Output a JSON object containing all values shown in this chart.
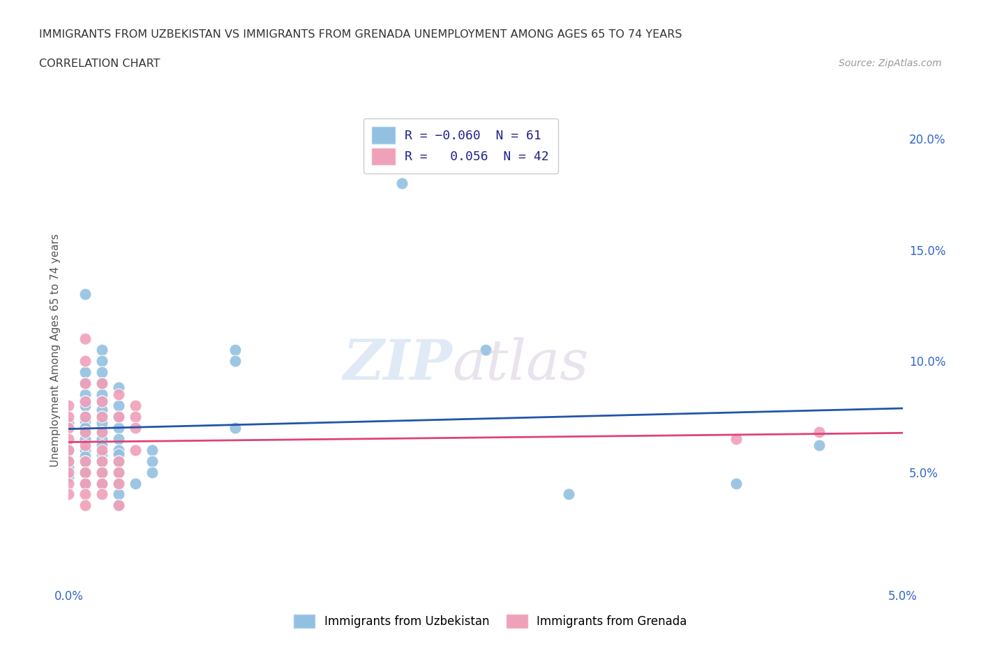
{
  "title_line1": "IMMIGRANTS FROM UZBEKISTAN VS IMMIGRANTS FROM GRENADA UNEMPLOYMENT AMONG AGES 65 TO 74 YEARS",
  "title_line2": "CORRELATION CHART",
  "source_text": "Source: ZipAtlas.com",
  "ylabel": "Unemployment Among Ages 65 to 74 years",
  "xlim": [
    0.0,
    0.05
  ],
  "ylim": [
    0.0,
    0.21
  ],
  "y_ticks_right": [
    0.05,
    0.1,
    0.15,
    0.2
  ],
  "y_tick_labels_right": [
    "5.0%",
    "10.0%",
    "15.0%",
    "20.0%"
  ],
  "uzbekistan_color": "#92c0e0",
  "grenada_color": "#f0a0b8",
  "uzbekistan_line_color": "#2255aa",
  "grenada_line_color": "#dd4477",
  "background_color": "#ffffff",
  "grid_color": "#cccccc",
  "uzbekistan_points": [
    [
      0.0,
      0.06
    ],
    [
      0.0,
      0.055
    ],
    [
      0.0,
      0.052
    ],
    [
      0.0,
      0.048
    ],
    [
      0.0,
      0.072
    ],
    [
      0.001,
      0.13
    ],
    [
      0.001,
      0.095
    ],
    [
      0.001,
      0.09
    ],
    [
      0.001,
      0.085
    ],
    [
      0.001,
      0.082
    ],
    [
      0.001,
      0.08
    ],
    [
      0.001,
      0.075
    ],
    [
      0.001,
      0.073
    ],
    [
      0.001,
      0.07
    ],
    [
      0.001,
      0.068
    ],
    [
      0.001,
      0.065
    ],
    [
      0.001,
      0.06
    ],
    [
      0.001,
      0.057
    ],
    [
      0.001,
      0.055
    ],
    [
      0.001,
      0.05
    ],
    [
      0.001,
      0.045
    ],
    [
      0.002,
      0.105
    ],
    [
      0.002,
      0.1
    ],
    [
      0.002,
      0.095
    ],
    [
      0.002,
      0.09
    ],
    [
      0.002,
      0.085
    ],
    [
      0.002,
      0.082
    ],
    [
      0.002,
      0.078
    ],
    [
      0.002,
      0.075
    ],
    [
      0.002,
      0.072
    ],
    [
      0.002,
      0.068
    ],
    [
      0.002,
      0.065
    ],
    [
      0.002,
      0.062
    ],
    [
      0.002,
      0.058
    ],
    [
      0.002,
      0.055
    ],
    [
      0.002,
      0.05
    ],
    [
      0.002,
      0.045
    ],
    [
      0.003,
      0.088
    ],
    [
      0.003,
      0.08
    ],
    [
      0.003,
      0.075
    ],
    [
      0.003,
      0.07
    ],
    [
      0.003,
      0.065
    ],
    [
      0.003,
      0.06
    ],
    [
      0.003,
      0.058
    ],
    [
      0.003,
      0.055
    ],
    [
      0.003,
      0.05
    ],
    [
      0.003,
      0.045
    ],
    [
      0.003,
      0.04
    ],
    [
      0.003,
      0.035
    ],
    [
      0.004,
      0.045
    ],
    [
      0.005,
      0.06
    ],
    [
      0.005,
      0.055
    ],
    [
      0.005,
      0.05
    ],
    [
      0.01,
      0.105
    ],
    [
      0.01,
      0.1
    ],
    [
      0.01,
      0.07
    ],
    [
      0.02,
      0.18
    ],
    [
      0.025,
      0.105
    ],
    [
      0.03,
      0.04
    ],
    [
      0.04,
      0.045
    ],
    [
      0.045,
      0.062
    ]
  ],
  "grenada_points": [
    [
      0.0,
      0.08
    ],
    [
      0.0,
      0.075
    ],
    [
      0.0,
      0.07
    ],
    [
      0.0,
      0.065
    ],
    [
      0.0,
      0.06
    ],
    [
      0.0,
      0.055
    ],
    [
      0.0,
      0.05
    ],
    [
      0.0,
      0.045
    ],
    [
      0.0,
      0.04
    ],
    [
      0.001,
      0.11
    ],
    [
      0.001,
      0.1
    ],
    [
      0.001,
      0.09
    ],
    [
      0.001,
      0.082
    ],
    [
      0.001,
      0.075
    ],
    [
      0.001,
      0.068
    ],
    [
      0.001,
      0.062
    ],
    [
      0.001,
      0.055
    ],
    [
      0.001,
      0.05
    ],
    [
      0.001,
      0.045
    ],
    [
      0.001,
      0.04
    ],
    [
      0.001,
      0.035
    ],
    [
      0.002,
      0.09
    ],
    [
      0.002,
      0.082
    ],
    [
      0.002,
      0.075
    ],
    [
      0.002,
      0.068
    ],
    [
      0.002,
      0.06
    ],
    [
      0.002,
      0.055
    ],
    [
      0.002,
      0.05
    ],
    [
      0.002,
      0.045
    ],
    [
      0.002,
      0.04
    ],
    [
      0.003,
      0.085
    ],
    [
      0.003,
      0.075
    ],
    [
      0.003,
      0.055
    ],
    [
      0.003,
      0.05
    ],
    [
      0.003,
      0.045
    ],
    [
      0.003,
      0.035
    ],
    [
      0.004,
      0.08
    ],
    [
      0.004,
      0.075
    ],
    [
      0.004,
      0.07
    ],
    [
      0.004,
      0.06
    ],
    [
      0.04,
      0.065
    ],
    [
      0.045,
      0.068
    ]
  ]
}
